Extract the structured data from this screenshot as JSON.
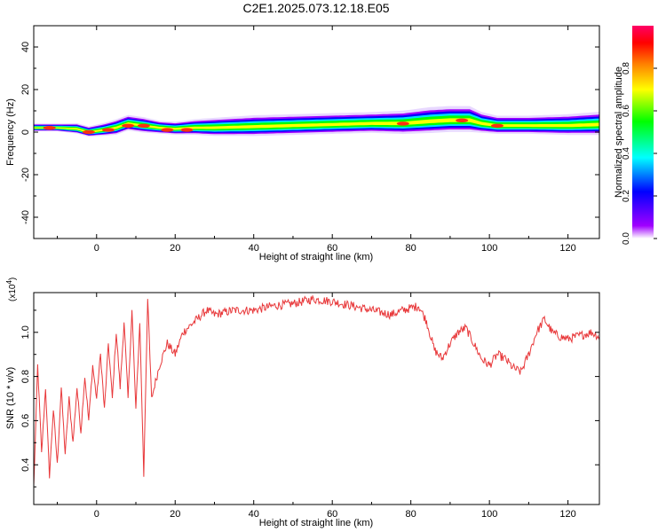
{
  "figure_title": "C2E1.2025.073.12.18.E05",
  "colors": {
    "snr_line": "#e8383a",
    "colormap": [
      "#ffffff",
      "#a000ff",
      "#0000ff",
      "#00ffff",
      "#00ff00",
      "#ffff00",
      "#ff8000",
      "#ff0000",
      "#ff0066"
    ]
  },
  "chart_data": [
    {
      "type": "heatmap",
      "xlabel": "Height of straight line (km)",
      "ylabel": "Frequency (Hz)",
      "xlim": [
        -16,
        128
      ],
      "ylim": [
        -50,
        50
      ],
      "xticks": [
        0,
        20,
        40,
        60,
        80,
        100,
        120
      ],
      "yticks": [
        -40,
        -20,
        0,
        20,
        40
      ],
      "xtick_labels": [
        "0",
        "20",
        "40",
        "60",
        "80",
        "100",
        "120"
      ],
      "ytick_labels": [
        "-40",
        "-20",
        "0",
        "20",
        "40"
      ],
      "colorbar": {
        "label": "Normalized spectral amplitude",
        "range": [
          0.0,
          1.0
        ],
        "ticks": [
          0.0,
          0.2,
          0.4,
          0.6,
          0.8
        ],
        "tick_labels": [
          "0.0",
          "0.2",
          "0.4",
          "0.6",
          "0.8"
        ]
      },
      "ridge": {
        "x": [
          -16,
          -10,
          -5,
          -2,
          2,
          5,
          8,
          12,
          16,
          20,
          25,
          30,
          40,
          50,
          60,
          70,
          78,
          85,
          90,
          95,
          98,
          102,
          110,
          120,
          128
        ],
        "center_hz": [
          2,
          2,
          1.5,
          0,
          1,
          2,
          4,
          3,
          2,
          1.5,
          2,
          2,
          2.5,
          3,
          3.5,
          4,
          4,
          5,
          5.5,
          5.5,
          4,
          3,
          3,
          3,
          3.5
        ],
        "width_hz": [
          1.5,
          1.5,
          2,
          2,
          2.5,
          3,
          3,
          3,
          2.5,
          2.5,
          3,
          3.5,
          4,
          4,
          4,
          4,
          4.5,
          5,
          5,
          5,
          4,
          3.5,
          3.5,
          4,
          4.5
        ]
      },
      "hotspots": [
        {
          "x": -12,
          "y": 2
        },
        {
          "x": -2,
          "y": 0
        },
        {
          "x": 3,
          "y": 1
        },
        {
          "x": 8,
          "y": 3
        },
        {
          "x": 12,
          "y": 3
        },
        {
          "x": 18,
          "y": 1
        },
        {
          "x": 23,
          "y": 1
        },
        {
          "x": 78,
          "y": 4
        },
        {
          "x": 93,
          "y": 5.5
        },
        {
          "x": 102,
          "y": 3
        }
      ]
    },
    {
      "type": "line",
      "xlabel": "Height of straight line (km)",
      "ylabel": "SNR (10 * v/v)",
      "yscale_label": "(x10",
      "yscale_exponent": "4",
      "yscale_close": ")",
      "xlim": [
        -16,
        128
      ],
      "ylim": [
        0.22,
        1.18
      ],
      "xticks": [
        0,
        20,
        40,
        60,
        80,
        100,
        120
      ],
      "yticks": [
        0.4,
        0.6,
        0.8,
        1.0
      ],
      "xtick_labels": [
        "0",
        "20",
        "40",
        "60",
        "80",
        "100",
        "120"
      ],
      "ytick_labels": [
        "0.4",
        "0.6",
        "0.8",
        "1.0"
      ],
      "series": [
        {
          "name": "SNR",
          "x": [
            -16,
            -15,
            -14,
            -13,
            -12,
            -11,
            -10,
            -9,
            -8,
            -7,
            -6,
            -5,
            -4,
            -3,
            -2,
            -1,
            0,
            1,
            2,
            3,
            4,
            5,
            6,
            7,
            8,
            9,
            10,
            11,
            12,
            13,
            14,
            16,
            18,
            20,
            22,
            25,
            28,
            30,
            35,
            40,
            45,
            50,
            55,
            60,
            65,
            70,
            75,
            78,
            80,
            82,
            84,
            86,
            88,
            90,
            92,
            94,
            96,
            98,
            100,
            102,
            104,
            106,
            108,
            110,
            112,
            114,
            116,
            118,
            120,
            122,
            124,
            126,
            128
          ],
          "y": [
            0.3,
            0.85,
            0.45,
            0.75,
            0.35,
            0.65,
            0.4,
            0.75,
            0.45,
            0.7,
            0.5,
            0.75,
            0.55,
            0.8,
            0.6,
            0.85,
            0.7,
            0.9,
            0.65,
            0.95,
            0.7,
            1.0,
            0.75,
            1.05,
            0.7,
            1.1,
            0.65,
            1.05,
            0.35,
            1.15,
            0.7,
            0.85,
            0.95,
            0.9,
            1.0,
            1.05,
            1.1,
            1.08,
            1.1,
            1.1,
            1.12,
            1.13,
            1.15,
            1.14,
            1.12,
            1.1,
            1.08,
            1.1,
            1.11,
            1.12,
            1.05,
            0.92,
            0.88,
            0.95,
            1.0,
            1.02,
            0.95,
            0.88,
            0.85,
            0.9,
            0.88,
            0.84,
            0.82,
            0.9,
            1.0,
            1.06,
            1.0,
            0.98,
            0.97,
            0.98,
            0.99,
            1.0,
            0.98
          ]
        }
      ]
    }
  ]
}
